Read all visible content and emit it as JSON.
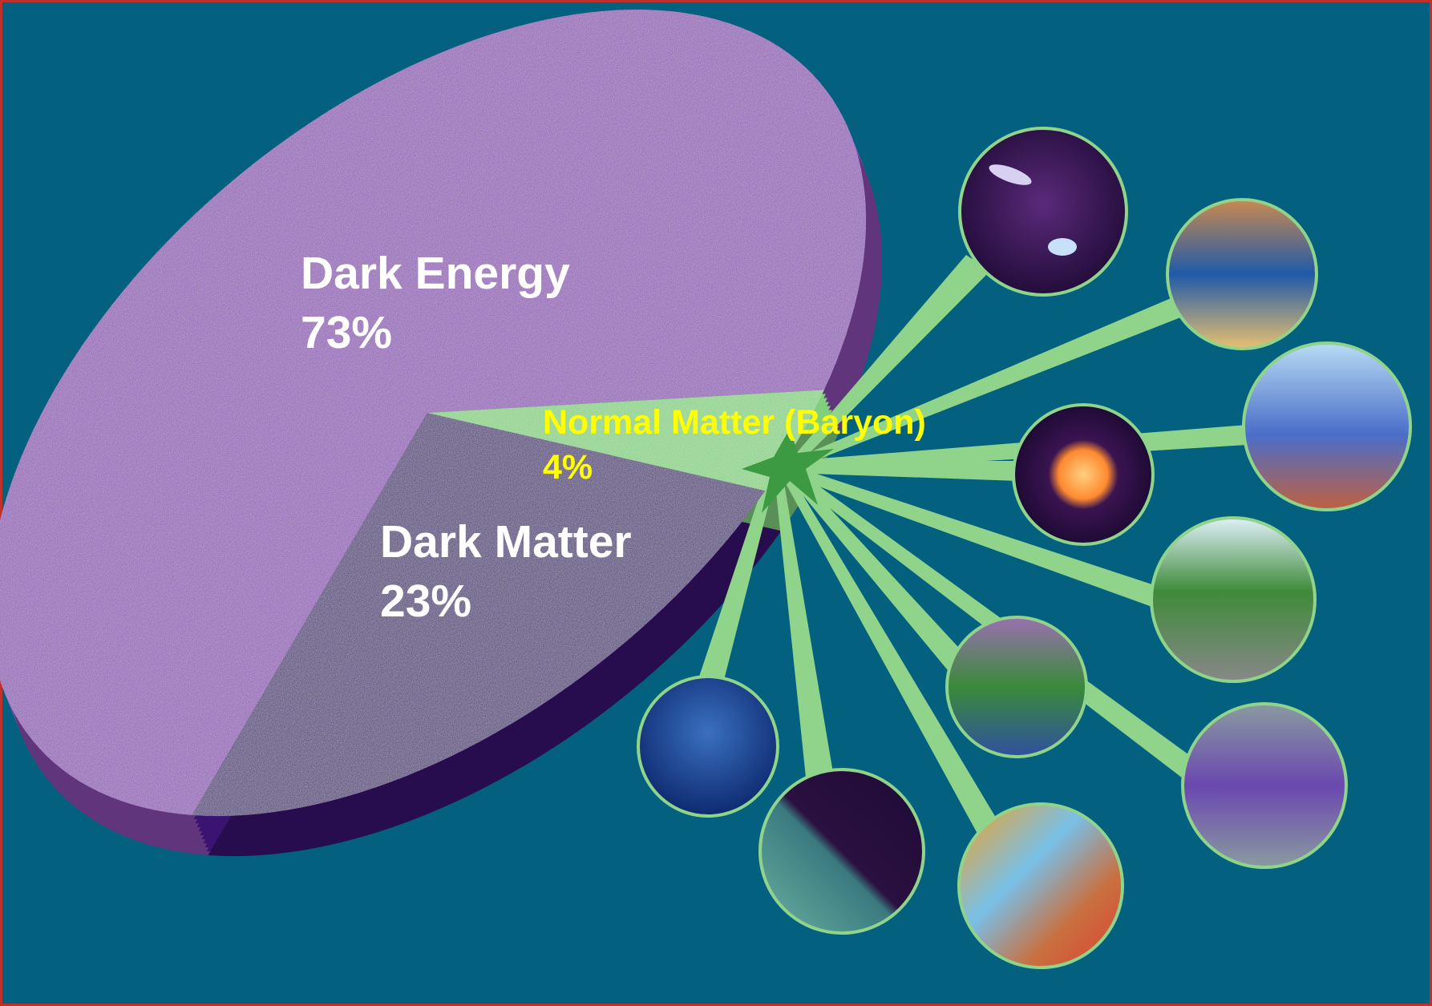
{
  "chart_data": {
    "type": "pie",
    "categories": [
      "Dark Energy",
      "Dark Matter",
      "Normal Matter (Baryon)"
    ],
    "values": [
      73,
      23,
      4
    ],
    "value_labels": [
      "73%",
      "23%",
      "4%"
    ],
    "colors": [
      "#8a4db2",
      "#3a1470",
      "#80cf7b"
    ]
  }
}
